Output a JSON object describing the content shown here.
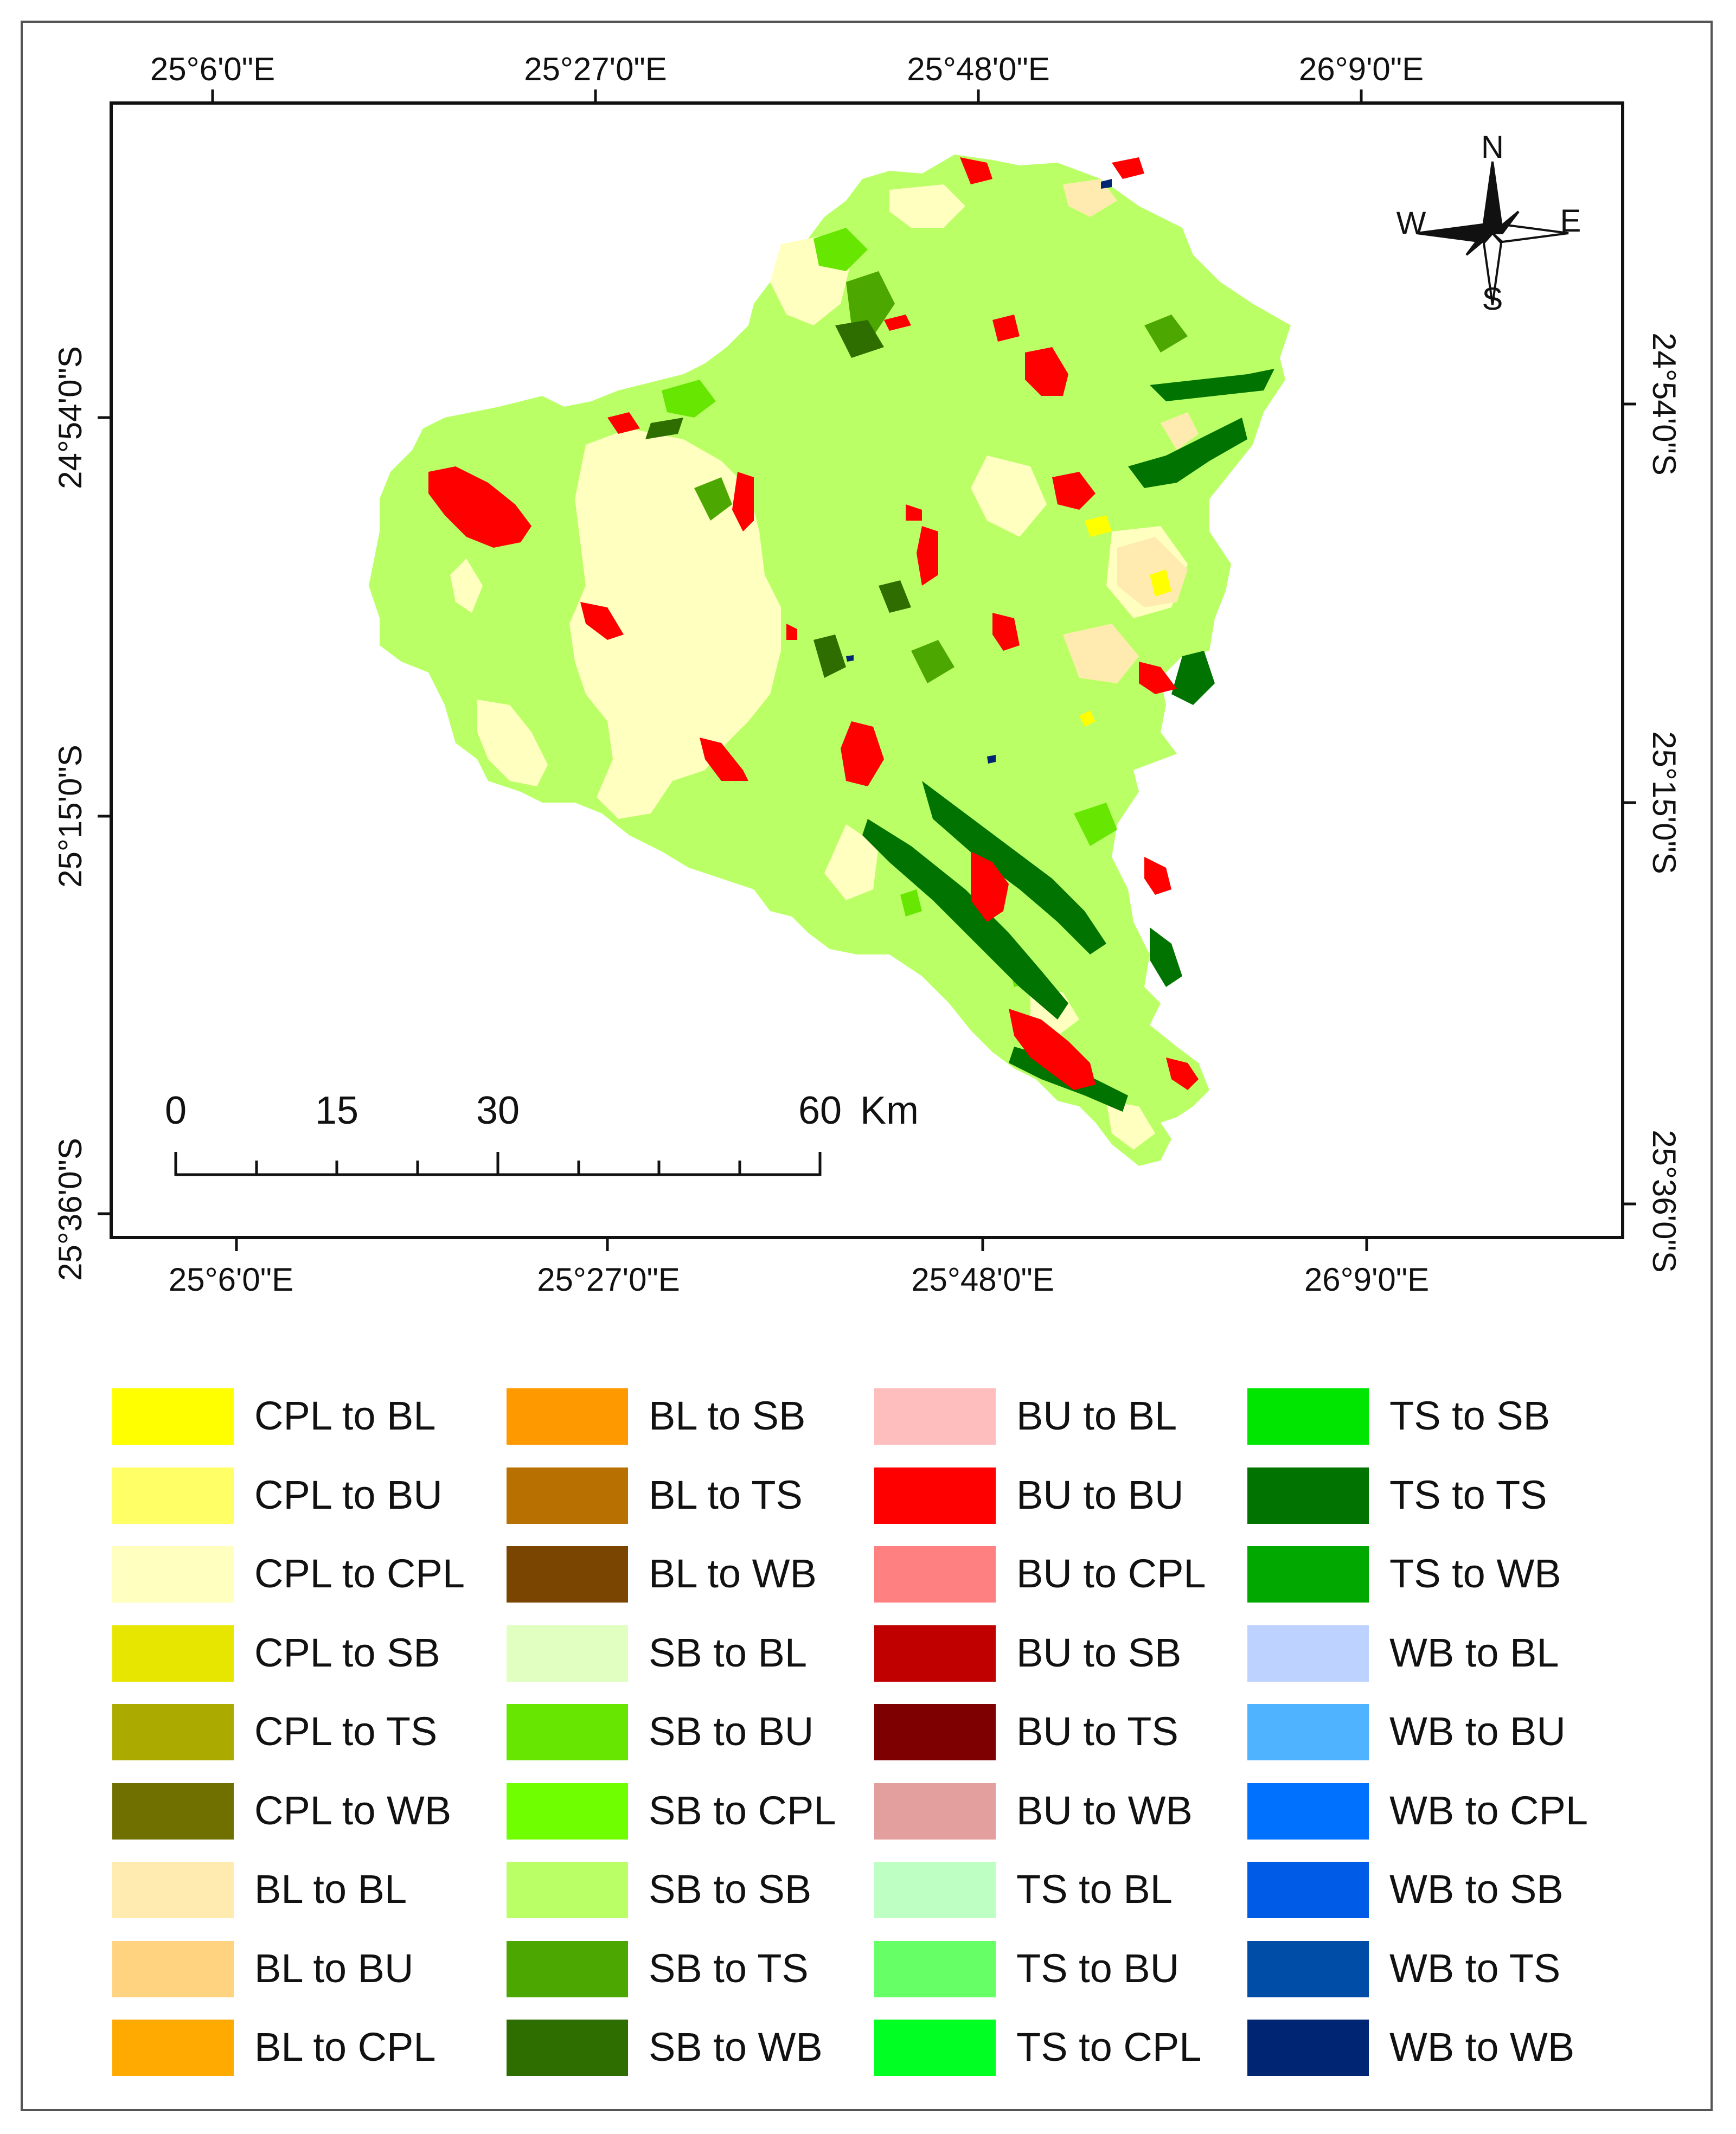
{
  "map": {
    "longitude_ticks": [
      "25°6'0\"E",
      "25°27'0\"E",
      "25°48'0\"E",
      "26°9'0\"E"
    ],
    "latitude_ticks": [
      "24°54'0\"S",
      "25°15'0\"S",
      "25°36'0\"S"
    ],
    "north_arrow": {
      "n": "N",
      "s": "S",
      "e": "E",
      "w": "W"
    },
    "scale_bar": {
      "labels": [
        "0",
        "15",
        "30",
        "60"
      ],
      "unit": "Km"
    }
  },
  "legend": [
    {
      "label": "CPL to BL",
      "color": "#FFFF00"
    },
    {
      "label": "CPL to BU",
      "color": "#FFFF66"
    },
    {
      "label": "CPL to CPL",
      "color": "#FFFFC0"
    },
    {
      "label": "CPL to SB",
      "color": "#E6E600"
    },
    {
      "label": "CPL to TS",
      "color": "#AAAA00"
    },
    {
      "label": "CPL to WB",
      "color": "#707000"
    },
    {
      "label": "BL to BL",
      "color": "#FFEBAF"
    },
    {
      "label": "BL to BU",
      "color": "#FFD37F"
    },
    {
      "label": "BL to CPL",
      "color": "#FFAA00"
    },
    {
      "label": "BL to SB",
      "color": "#FF9900"
    },
    {
      "label": "BL to TS",
      "color": "#B87000"
    },
    {
      "label": "BL to WB",
      "color": "#7A4500"
    },
    {
      "label": "SB to BL",
      "color": "#E0FFC0"
    },
    {
      "label": "SB to BU",
      "color": "#66E600"
    },
    {
      "label": "SB to CPL",
      "color": "#70FF00"
    },
    {
      "label": "SB to SB",
      "color": "#BBFF66"
    },
    {
      "label": "SB to TS",
      "color": "#4CA800"
    },
    {
      "label": "SB to WB",
      "color": "#2E6E00"
    },
    {
      "label": "BU to BL",
      "color": "#FFBEBE"
    },
    {
      "label": "BU to BU",
      "color": "#FF0000"
    },
    {
      "label": "BU to CPL",
      "color": "#FF8080"
    },
    {
      "label": "BU to SB",
      "color": "#C00000"
    },
    {
      "label": "BU to TS",
      "color": "#7F0000"
    },
    {
      "label": "BU to WB",
      "color": "#E39E9E"
    },
    {
      "label": "TS to BL",
      "color": "#BEFFC4"
    },
    {
      "label": "TS to BU",
      "color": "#66FF66"
    },
    {
      "label": "TS to CPL",
      "color": "#00FF22"
    },
    {
      "label": "TS to SB",
      "color": "#00E600"
    },
    {
      "label": "TS to TS",
      "color": "#007300"
    },
    {
      "label": "TS to WB",
      "color": "#00A800"
    },
    {
      "label": "WB to BL",
      "color": "#BED2FF"
    },
    {
      "label": "WB to BU",
      "color": "#4FB3FF"
    },
    {
      "label": "WB to CPL",
      "color": "#0070FF"
    },
    {
      "label": "WB to SB",
      "color": "#005CE6"
    },
    {
      "label": "WB to TS",
      "color": "#004DA8"
    },
    {
      "label": "WB to WB",
      "color": "#002673"
    }
  ]
}
